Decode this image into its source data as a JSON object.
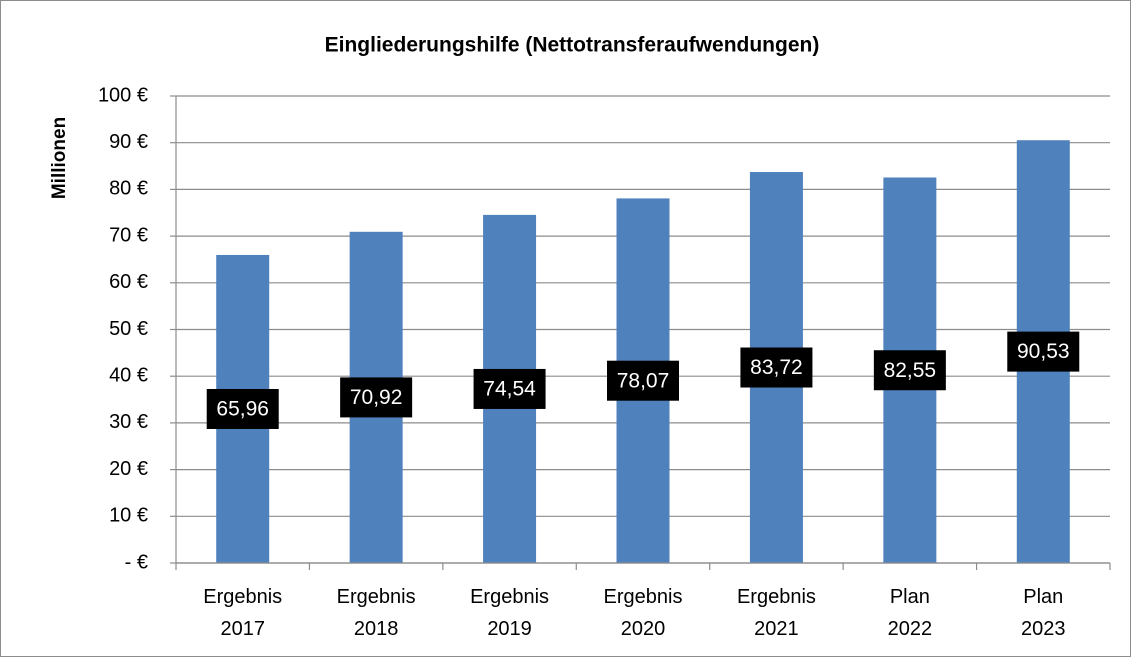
{
  "chart_data": {
    "type": "bar",
    "title": "Eingliederungshilfe (Nettotransferaufwendungen)",
    "y_label": "Millionen",
    "categories": [
      "Ergebnis 2017",
      "Ergebnis 2018",
      "Ergebnis 2019",
      "Ergebnis 2020",
      "Ergebnis 2021",
      "Plan 2022",
      "Plan 2023"
    ],
    "values": [
      65.96,
      70.92,
      74.54,
      78.07,
      83.72,
      82.55,
      90.53
    ],
    "value_labels": [
      "65,96",
      "70,92",
      "74,54",
      "78,07",
      "83,72",
      "82,55",
      "90,53"
    ],
    "color": "#4f81bd",
    "ylim": [
      0,
      100
    ],
    "yticks": [
      {
        "value": 0,
        "label": "-  €"
      },
      {
        "value": 10,
        "label": "10 €"
      },
      {
        "value": 20,
        "label": "20 €"
      },
      {
        "value": 30,
        "label": "30 €"
      },
      {
        "value": 40,
        "label": "40 €"
      },
      {
        "value": 50,
        "label": "50 €"
      },
      {
        "value": 60,
        "label": "60 €"
      },
      {
        "value": 70,
        "label": "70 €"
      },
      {
        "value": 80,
        "label": "80 €"
      },
      {
        "value": 90,
        "label": "90 €"
      },
      {
        "value": 100,
        "label": "100 €"
      }
    ],
    "grid": true
  }
}
